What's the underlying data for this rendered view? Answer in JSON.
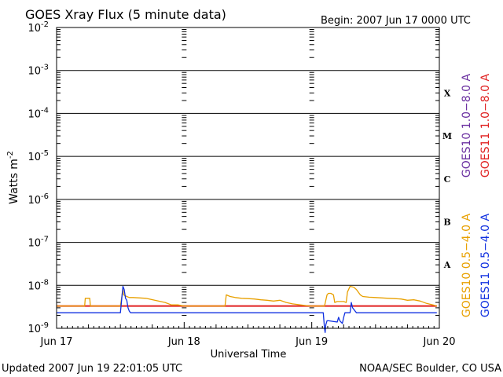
{
  "chart_data": {
    "type": "line",
    "title": "GOES Xray Flux (5 minute data)",
    "begin_label": "Begin:  2007 Jun 17 0000 UTC",
    "ylabel_base": "Watts m",
    "ylabel_exp": "-2",
    "xlabel": "Universal Time",
    "y_scale": "log",
    "ylim": [
      1e-09,
      0.01
    ],
    "xlim_days": [
      0,
      3
    ],
    "grid": true,
    "y_ticks": [
      {
        "base": "10",
        "exp": "-2",
        "value": 0.01
      },
      {
        "base": "10",
        "exp": "-3",
        "value": 0.001
      },
      {
        "base": "10",
        "exp": "-4",
        "value": 0.0001
      },
      {
        "base": "10",
        "exp": "-5",
        "value": 1e-05
      },
      {
        "base": "10",
        "exp": "-6",
        "value": 1e-06
      },
      {
        "base": "10",
        "exp": "-7",
        "value": 1e-07
      },
      {
        "base": "10",
        "exp": "-8",
        "value": 1e-08
      },
      {
        "base": "10",
        "exp": "-9",
        "value": 1e-09
      }
    ],
    "x_ticks": [
      {
        "label": "Jun 17",
        "day": 0
      },
      {
        "label": "Jun 18",
        "day": 1
      },
      {
        "label": "Jun 19",
        "day": 2
      },
      {
        "label": "Jun 20",
        "day": 3
      }
    ],
    "flare_classes": [
      {
        "label": "X",
        "value": 0.0003
      },
      {
        "label": "M",
        "value": 3e-05
      },
      {
        "label": "C",
        "value": 3e-06
      },
      {
        "label": "B",
        "value": 3e-07
      },
      {
        "label": "A",
        "value": 3e-08
      }
    ],
    "legend": [
      {
        "label": "GOES10 1.0−8.0 A",
        "color": "#6a2fa0"
      },
      {
        "label": "GOES11 1.0−8.0 A",
        "color": "#e02020"
      },
      {
        "label": "GOES10 0.5−4.0 A",
        "color": "#e8a000"
      },
      {
        "label": "GOES11 0.5−4.0 A",
        "color": "#1030e0"
      }
    ],
    "series": [
      {
        "name": "GOES11 1.0−8.0 A",
        "color": "#e02020",
        "x": [
          0.0,
          0.5,
          1.0,
          1.5,
          2.0,
          2.5,
          2.98
        ],
        "y": [
          3.3e-09,
          3.3e-09,
          3.3e-09,
          3.3e-09,
          3.3e-09,
          3.3e-09,
          3.3e-09
        ]
      },
      {
        "name": "GOES10 0.5−4.0 A",
        "color": "#e8a000",
        "x": [
          0.0,
          0.22,
          0.225,
          0.26,
          0.265,
          0.5,
          0.52,
          0.525,
          0.55,
          0.57,
          0.6,
          0.7,
          0.85,
          0.9,
          0.95,
          1.0,
          1.15,
          1.2,
          1.32,
          1.33,
          1.36,
          1.4,
          1.45,
          1.5,
          1.55,
          1.6,
          1.65,
          1.7,
          1.75,
          1.8,
          1.85,
          1.98,
          2.1,
          2.12,
          2.13,
          2.15,
          2.17,
          2.18,
          2.2,
          2.25,
          2.27,
          2.28,
          2.3,
          2.33,
          2.35,
          2.38,
          2.4,
          2.45,
          2.5,
          2.55,
          2.6,
          2.65,
          2.7,
          2.75,
          2.8,
          2.85,
          2.9,
          2.95,
          2.98
        ],
        "y": [
          3.3e-09,
          3.3e-09,
          5e-09,
          5e-09,
          3.3e-09,
          3.3e-09,
          8e-09,
          6e-09,
          5.5e-09,
          5.2e-09,
          5.2e-09,
          5e-09,
          4e-09,
          3.5e-09,
          3.5e-09,
          3.3e-09,
          3.3e-09,
          3.3e-09,
          3.3e-09,
          6e-09,
          5.5e-09,
          5.2e-09,
          5e-09,
          4.9e-09,
          4.8e-09,
          4.6e-09,
          4.5e-09,
          4.3e-09,
          4.5e-09,
          4e-09,
          3.7e-09,
          3.3e-09,
          3.3e-09,
          6e-09,
          6.5e-09,
          6.5e-09,
          6e-09,
          4e-09,
          4.2e-09,
          4.2e-09,
          4e-09,
          7e-09,
          9.5e-09,
          9e-09,
          8e-09,
          6e-09,
          5.5e-09,
          5.3e-09,
          5.2e-09,
          5.1e-09,
          5e-09,
          4.9e-09,
          4.8e-09,
          4.5e-09,
          4.6e-09,
          4.3e-09,
          3.8e-09,
          3.5e-09,
          3.3e-09
        ]
      },
      {
        "name": "GOES11 0.5−4.0 A",
        "color": "#1030e0",
        "x": [
          0.0,
          0.5,
          0.52,
          0.53,
          0.54,
          0.55,
          0.56,
          0.57,
          0.58,
          0.6,
          0.8,
          1.0,
          1.3,
          1.5,
          1.8,
          2.09,
          2.1,
          2.105,
          2.11,
          2.12,
          2.13,
          2.2,
          2.21,
          2.22,
          2.24,
          2.25,
          2.26,
          2.27,
          2.28,
          2.3,
          2.31,
          2.32,
          2.35,
          2.5,
          2.7,
          2.85,
          2.98
        ],
        "y": [
          2.3e-09,
          2.3e-09,
          9.5e-09,
          8e-09,
          5e-09,
          4.5e-09,
          3e-09,
          2.5e-09,
          2.3e-09,
          2.3e-09,
          2.3e-09,
          2.3e-09,
          2.3e-09,
          2.3e-09,
          2.3e-09,
          2.3e-09,
          1e-09,
          8e-10,
          1.2e-09,
          1.5e-09,
          1.5e-09,
          1.4e-09,
          1.8e-09,
          1.5e-09,
          1.3e-09,
          1.8e-09,
          2.3e-09,
          2.3e-09,
          2.3e-09,
          2.3e-09,
          4e-09,
          3e-09,
          2.3e-09,
          2.3e-09,
          2.3e-09,
          2.3e-09,
          2.3e-09
        ]
      }
    ]
  },
  "footer": {
    "updated": "Updated 2007 Jun 19 22:01:05 UTC",
    "credit": "NOAA/SEC Boulder, CO USA"
  }
}
